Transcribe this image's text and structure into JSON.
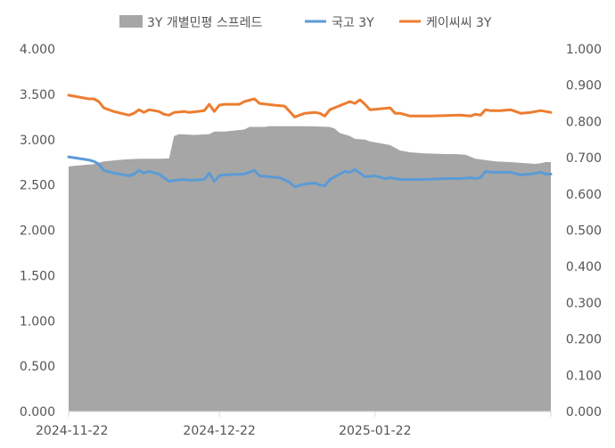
{
  "chart_data": {
    "type": "line",
    "legend": {
      "placement": "top",
      "items": [
        {
          "label": "3Y 개별민평 스프레드",
          "kind": "area",
          "color": "#a6a6a6"
        },
        {
          "label": "국고 3Y",
          "kind": "line",
          "color": "#5b9bd5"
        },
        {
          "label": "케이씨씨 3Y",
          "kind": "line",
          "color": "#ed7d31"
        }
      ]
    },
    "x_ticks": [
      "2024-11-22",
      "2024-12-22",
      "2025-01-22"
    ],
    "left_axis": {
      "ylim": [
        0,
        4
      ],
      "ticks": [
        "0.000",
        "0.500",
        "1.000",
        "1.500",
        "2.000",
        "2.500",
        "3.000",
        "3.500",
        "4.000"
      ]
    },
    "right_axis": {
      "ylim": [
        0,
        1
      ],
      "ticks": [
        "0.000",
        "0.100",
        "0.200",
        "0.300",
        "0.400",
        "0.500",
        "0.600",
        "0.700",
        "0.800",
        "0.900",
        "1.000"
      ]
    },
    "grid": false,
    "series": [
      {
        "name": "3Y 개별민평 스프레드",
        "axis": "right",
        "type": "area",
        "color": "#a6a6a6",
        "points": [
          [
            "2024-11-22",
            0.676
          ],
          [
            "2024-11-25",
            0.68
          ],
          [
            "2024-11-27",
            0.682
          ],
          [
            "2024-11-29",
            0.69
          ],
          [
            "2024-12-03",
            0.695
          ],
          [
            "2024-12-06",
            0.697
          ],
          [
            "2024-12-10",
            0.697
          ],
          [
            "2024-12-12",
            0.698
          ],
          [
            "2024-12-13",
            0.76
          ],
          [
            "2024-12-14",
            0.765
          ],
          [
            "2024-12-17",
            0.763
          ],
          [
            "2024-12-20",
            0.765
          ],
          [
            "2024-12-21",
            0.772
          ],
          [
            "2024-12-23",
            0.772
          ],
          [
            "2024-12-25",
            0.775
          ],
          [
            "2024-12-27",
            0.778
          ],
          [
            "2024-12-28",
            0.785
          ],
          [
            "2024-12-31",
            0.785
          ],
          [
            "2025-01-01",
            0.787
          ],
          [
            "2025-01-05",
            0.787
          ],
          [
            "2025-01-09",
            0.787
          ],
          [
            "2025-01-13",
            0.785
          ],
          [
            "2025-01-14",
            0.78
          ],
          [
            "2025-01-15",
            0.768
          ],
          [
            "2025-01-17",
            0.76
          ],
          [
            "2025-01-18",
            0.752
          ],
          [
            "2025-01-20",
            0.75
          ],
          [
            "2025-01-21",
            0.745
          ],
          [
            "2025-01-25",
            0.735
          ],
          [
            "2025-01-27",
            0.72
          ],
          [
            "2025-01-29",
            0.715
          ],
          [
            "2025-02-01",
            0.712
          ],
          [
            "2025-02-05",
            0.71
          ],
          [
            "2025-02-07",
            0.71
          ],
          [
            "2025-02-09",
            0.708
          ],
          [
            "2025-02-11",
            0.697
          ],
          [
            "2025-02-15",
            0.69
          ],
          [
            "2025-02-18",
            0.688
          ],
          [
            "2025-02-21",
            0.685
          ],
          [
            "2025-02-23",
            0.683
          ],
          [
            "2025-02-24",
            0.685
          ],
          [
            "2025-02-25",
            0.688
          ],
          [
            "2025-02-26",
            0.688
          ]
        ]
      },
      {
        "name": "국고 3Y",
        "axis": "left",
        "type": "line",
        "color": "#5b9bd5",
        "points": [
          [
            "2024-11-22",
            2.81
          ],
          [
            "2024-11-26",
            2.775
          ],
          [
            "2024-11-27",
            2.76
          ],
          [
            "2024-11-28",
            2.73
          ],
          [
            "2024-11-29",
            2.66
          ],
          [
            "2024-12-01",
            2.63
          ],
          [
            "2024-12-04",
            2.6
          ],
          [
            "2024-12-05",
            2.62
          ],
          [
            "2024-12-06",
            2.66
          ],
          [
            "2024-12-07",
            2.63
          ],
          [
            "2024-12-08",
            2.65
          ],
          [
            "2024-12-10",
            2.62
          ],
          [
            "2024-12-11",
            2.58
          ],
          [
            "2024-12-12",
            2.54
          ],
          [
            "2024-12-13",
            2.55
          ],
          [
            "2024-12-15",
            2.56
          ],
          [
            "2024-12-16",
            2.55
          ],
          [
            "2024-12-19",
            2.56
          ],
          [
            "2024-12-20",
            2.63
          ],
          [
            "2024-12-21",
            2.54
          ],
          [
            "2024-12-22",
            2.6
          ],
          [
            "2024-12-23",
            2.61
          ],
          [
            "2024-12-27",
            2.62
          ],
          [
            "2024-12-29",
            2.66
          ],
          [
            "2024-12-30",
            2.6
          ],
          [
            "2025-01-03",
            2.58
          ],
          [
            "2025-01-05",
            2.53
          ],
          [
            "2025-01-06",
            2.48
          ],
          [
            "2025-01-08",
            2.51
          ],
          [
            "2025-01-10",
            2.52
          ],
          [
            "2025-01-11",
            2.5
          ],
          [
            "2025-01-12",
            2.49
          ],
          [
            "2025-01-13",
            2.56
          ],
          [
            "2025-01-16",
            2.65
          ],
          [
            "2025-01-17",
            2.64
          ],
          [
            "2025-01-18",
            2.67
          ],
          [
            "2025-01-19",
            2.63
          ],
          [
            "2025-01-20",
            2.59
          ],
          [
            "2025-01-22",
            2.6
          ],
          [
            "2025-01-24",
            2.57
          ],
          [
            "2025-01-25",
            2.58
          ],
          [
            "2025-01-27",
            2.56
          ],
          [
            "2025-02-01",
            2.56
          ],
          [
            "2025-02-05",
            2.57
          ],
          [
            "2025-02-08",
            2.57
          ],
          [
            "2025-02-10",
            2.58
          ],
          [
            "2025-02-11",
            2.57
          ],
          [
            "2025-02-12",
            2.58
          ],
          [
            "2025-02-13",
            2.65
          ],
          [
            "2025-02-14",
            2.64
          ],
          [
            "2025-02-16",
            2.64
          ],
          [
            "2025-02-18",
            2.64
          ],
          [
            "2025-02-20",
            2.61
          ],
          [
            "2025-02-22",
            2.62
          ],
          [
            "2025-02-24",
            2.64
          ],
          [
            "2025-02-25",
            2.62
          ],
          [
            "2025-02-26",
            2.62
          ]
        ]
      },
      {
        "name": "케이씨씨 3Y",
        "axis": "left",
        "type": "line",
        "color": "#ed7d31",
        "points": [
          [
            "2024-11-22",
            3.49
          ],
          [
            "2024-11-26",
            3.45
          ],
          [
            "2024-11-27",
            3.45
          ],
          [
            "2024-11-28",
            3.42
          ],
          [
            "2024-11-29",
            3.35
          ],
          [
            "2024-12-01",
            3.31
          ],
          [
            "2024-12-04",
            3.27
          ],
          [
            "2024-12-05",
            3.29
          ],
          [
            "2024-12-06",
            3.33
          ],
          [
            "2024-12-07",
            3.3
          ],
          [
            "2024-12-08",
            3.33
          ],
          [
            "2024-12-10",
            3.31
          ],
          [
            "2024-12-11",
            3.28
          ],
          [
            "2024-12-12",
            3.27
          ],
          [
            "2024-12-13",
            3.3
          ],
          [
            "2024-12-15",
            3.31
          ],
          [
            "2024-12-16",
            3.3
          ],
          [
            "2024-12-19",
            3.32
          ],
          [
            "2024-12-20",
            3.39
          ],
          [
            "2024-12-21",
            3.31
          ],
          [
            "2024-12-22",
            3.38
          ],
          [
            "2024-12-23",
            3.39
          ],
          [
            "2024-12-26",
            3.39
          ],
          [
            "2024-12-27",
            3.42
          ],
          [
            "2024-12-29",
            3.45
          ],
          [
            "2024-12-30",
            3.4
          ],
          [
            "2025-01-02",
            3.38
          ],
          [
            "2025-01-04",
            3.37
          ],
          [
            "2025-01-05",
            3.31
          ],
          [
            "2025-01-06",
            3.25
          ],
          [
            "2025-01-08",
            3.29
          ],
          [
            "2025-01-10",
            3.3
          ],
          [
            "2025-01-11",
            3.29
          ],
          [
            "2025-01-12",
            3.26
          ],
          [
            "2025-01-13",
            3.33
          ],
          [
            "2025-01-17",
            3.42
          ],
          [
            "2025-01-18",
            3.4
          ],
          [
            "2025-01-19",
            3.44
          ],
          [
            "2025-01-20",
            3.39
          ],
          [
            "2025-01-21",
            3.33
          ],
          [
            "2025-01-25",
            3.35
          ],
          [
            "2025-01-26",
            3.29
          ],
          [
            "2025-01-27",
            3.29
          ],
          [
            "2025-01-29",
            3.26
          ],
          [
            "2025-02-02",
            3.26
          ],
          [
            "2025-02-08",
            3.27
          ],
          [
            "2025-02-10",
            3.26
          ],
          [
            "2025-02-11",
            3.28
          ],
          [
            "2025-02-12",
            3.27
          ],
          [
            "2025-02-13",
            3.33
          ],
          [
            "2025-02-14",
            3.32
          ],
          [
            "2025-02-16",
            3.32
          ],
          [
            "2025-02-18",
            3.33
          ],
          [
            "2025-02-20",
            3.29
          ],
          [
            "2025-02-22",
            3.3
          ],
          [
            "2025-02-24",
            3.32
          ],
          [
            "2025-02-25",
            3.31
          ],
          [
            "2025-02-26",
            3.3
          ]
        ]
      }
    ]
  }
}
